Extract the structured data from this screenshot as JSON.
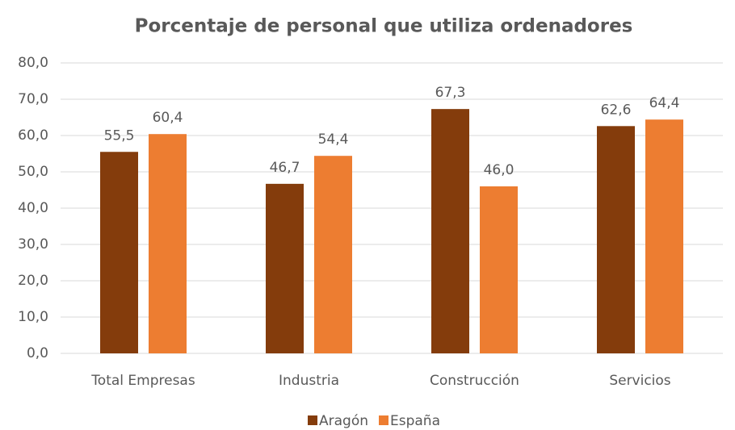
{
  "chart_data": {
    "type": "bar",
    "title": "Porcentaje de personal que utiliza ordenadores",
    "categories": [
      "Total Empresas",
      "Industria",
      "Construcción",
      "Servicios"
    ],
    "series": [
      {
        "name": "Aragón",
        "color": "#843c0c",
        "values": [
          55.5,
          46.7,
          67.3,
          62.6
        ],
        "value_labels": [
          "55,5",
          "46,7",
          "67,3",
          "62,6"
        ]
      },
      {
        "name": "España",
        "color": "#ed7d31",
        "values": [
          60.4,
          54.4,
          46.0,
          64.4
        ],
        "value_labels": [
          "60,4",
          "54,4",
          "46,0",
          "64,4"
        ]
      }
    ],
    "ylim": [
      0,
      80
    ],
    "yticks": [
      {
        "value": 0,
        "label": "0,0"
      },
      {
        "value": 10,
        "label": "10,0"
      },
      {
        "value": 20,
        "label": "20,0"
      },
      {
        "value": 30,
        "label": "30,0"
      },
      {
        "value": 40,
        "label": "40,0"
      },
      {
        "value": 50,
        "label": "50,0"
      },
      {
        "value": 60,
        "label": "60,0"
      },
      {
        "value": 70,
        "label": "70,0"
      },
      {
        "value": 80,
        "label": "80,0"
      }
    ],
    "grid": true,
    "legend": "bottom"
  }
}
